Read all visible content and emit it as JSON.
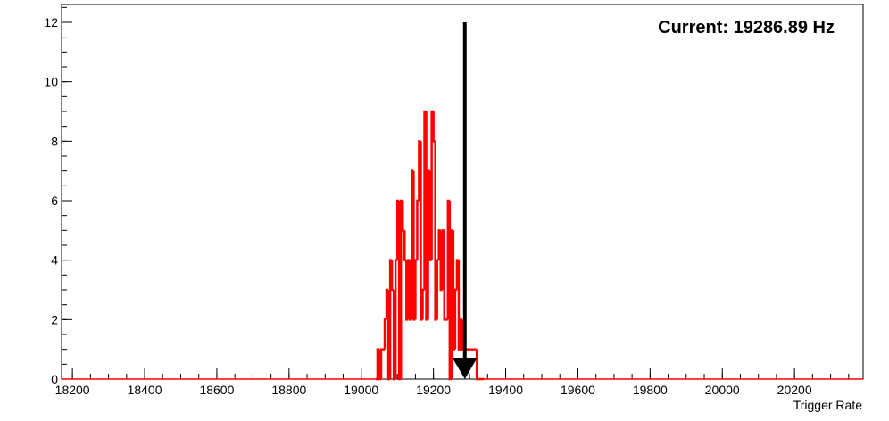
{
  "chart_data": {
    "type": "histogram",
    "title": "",
    "xlabel": "Trigger Rate",
    "ylabel": "",
    "xlim": [
      18170,
      20390
    ],
    "ylim": [
      0,
      12.6
    ],
    "x_ticks": [
      {
        "value": 18200,
        "label": "18200"
      },
      {
        "value": 18400,
        "label": "18400"
      },
      {
        "value": 18600,
        "label": "18600"
      },
      {
        "value": 18800,
        "label": "18800"
      },
      {
        "value": 19000,
        "label": "19000"
      },
      {
        "value": 19200,
        "label": "19200"
      },
      {
        "value": 19400,
        "label": "19400"
      },
      {
        "value": 19600,
        "label": "19600"
      },
      {
        "value": 19800,
        "label": "19800"
      },
      {
        "value": 20000,
        "label": "20000"
      },
      {
        "value": 20200,
        "label": "20200"
      }
    ],
    "y_ticks": [
      {
        "value": 0,
        "label": "0"
      },
      {
        "value": 2,
        "label": "2"
      },
      {
        "value": 4,
        "label": "4"
      },
      {
        "value": 6,
        "label": "6"
      },
      {
        "value": 8,
        "label": "8"
      },
      {
        "value": 10,
        "label": "10"
      },
      {
        "value": 12,
        "label": "12"
      }
    ],
    "x_minor_step": 50,
    "y_minor_step": 0.5,
    "grid": false,
    "line_color": "#ff0000",
    "bin_width": 5,
    "bin_start": 19040,
    "counts": [
      0,
      1,
      0,
      1,
      1,
      2,
      3,
      0,
      4,
      3,
      0,
      4,
      6,
      0,
      6,
      5,
      4,
      2,
      4,
      2,
      7,
      2,
      4,
      6,
      8,
      2,
      3,
      9,
      2,
      7,
      4,
      9,
      8,
      2,
      4,
      5,
      3,
      5,
      2,
      2,
      6,
      0,
      5,
      1,
      3,
      4,
      1,
      2,
      1,
      1,
      1,
      1,
      1,
      1,
      1,
      1,
      0,
      0,
      0,
      0
    ],
    "marker": {
      "x": 19286.89,
      "y_top": 12,
      "color": "#000000"
    },
    "annotation": "Current: 19286.89 Hz"
  }
}
